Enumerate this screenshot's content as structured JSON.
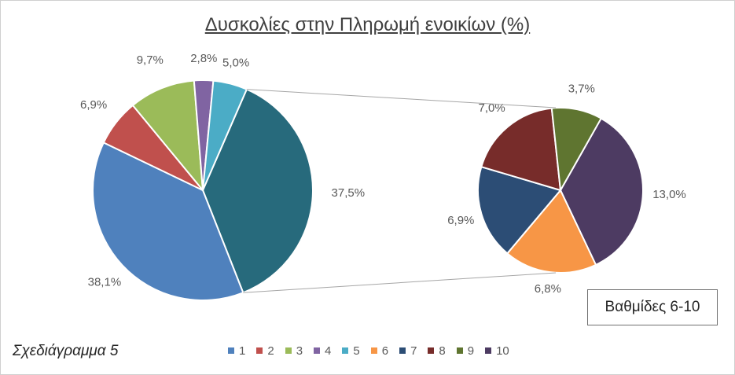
{
  "title": "Δυσκολίες στην Πληρωμή ενοικίων (%)",
  "caption": "Σχεδιάγραμμα 5",
  "callout": "Βαθμίδες 6-10",
  "colors": {
    "1": "#4f81bd",
    "2": "#c0504d",
    "3": "#9bbb59",
    "4": "#8064a2",
    "5": "#4bacc6",
    "6": "#f79646",
    "7": "#2c4d75",
    "8": "#772c2a",
    "9": "#5f7530",
    "10": "#4d3b62",
    "combined": "#276a7c"
  },
  "legend": [
    {
      "key": "1",
      "label": "1"
    },
    {
      "key": "2",
      "label": "2"
    },
    {
      "key": "3",
      "label": "3"
    },
    {
      "key": "4",
      "label": "4"
    },
    {
      "key": "5",
      "label": "5"
    },
    {
      "key": "6",
      "label": "6"
    },
    {
      "key": "7",
      "label": "7"
    },
    {
      "key": "8",
      "label": "8"
    },
    {
      "key": "9",
      "label": "9"
    },
    {
      "key": "10",
      "label": "10"
    }
  ],
  "chart_data": {
    "type": "pie",
    "subtype": "pie-of-pie",
    "title": "Δυσκολίες στην Πληρωμή ενοικίων (%)",
    "primary": [
      {
        "category": "1",
        "value": 38.1,
        "label": "38,1%"
      },
      {
        "category": "2",
        "value": 6.9,
        "label": "6,9%"
      },
      {
        "category": "3",
        "value": 9.7,
        "label": "9,7%"
      },
      {
        "category": "4",
        "value": 2.8,
        "label": "2,8%"
      },
      {
        "category": "5",
        "value": 5.0,
        "label": "5,0%"
      },
      {
        "category": "6-10",
        "value": 37.5,
        "label": "37,5%"
      }
    ],
    "secondary": [
      {
        "category": "6",
        "value": 6.8,
        "label": "6,8%"
      },
      {
        "category": "7",
        "value": 6.9,
        "label": "6,9%"
      },
      {
        "category": "8",
        "value": 7.0,
        "label": "7,0%"
      },
      {
        "category": "9",
        "value": 3.7,
        "label": "3,7%"
      },
      {
        "category": "10",
        "value": 13.0,
        "label": "13,0%"
      }
    ],
    "legend_position": "bottom"
  }
}
